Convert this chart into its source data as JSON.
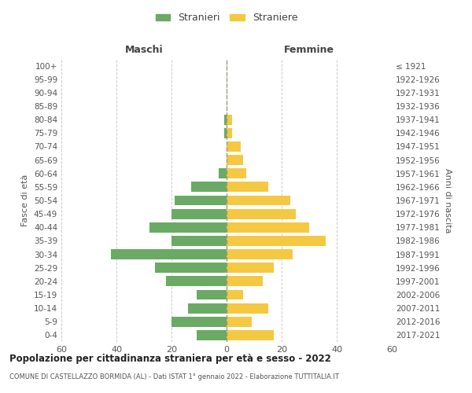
{
  "age_groups": [
    "0-4",
    "5-9",
    "10-14",
    "15-19",
    "20-24",
    "25-29",
    "30-34",
    "35-39",
    "40-44",
    "45-49",
    "50-54",
    "55-59",
    "60-64",
    "65-69",
    "70-74",
    "75-79",
    "80-84",
    "85-89",
    "90-94",
    "95-99",
    "100+"
  ],
  "birth_years": [
    "2017-2021",
    "2012-2016",
    "2007-2011",
    "2002-2006",
    "1997-2001",
    "1992-1996",
    "1987-1991",
    "1982-1986",
    "1977-1981",
    "1972-1976",
    "1967-1971",
    "1962-1966",
    "1957-1961",
    "1952-1956",
    "1947-1951",
    "1942-1946",
    "1937-1941",
    "1932-1936",
    "1927-1931",
    "1922-1926",
    "≤ 1921"
  ],
  "maschi": [
    11,
    20,
    14,
    11,
    22,
    26,
    42,
    20,
    28,
    20,
    19,
    13,
    3,
    0,
    0,
    1,
    1,
    0,
    0,
    0,
    0
  ],
  "femmine": [
    17,
    9,
    15,
    6,
    13,
    17,
    24,
    36,
    30,
    25,
    23,
    15,
    7,
    6,
    5,
    2,
    2,
    0,
    0,
    0,
    0
  ],
  "maschi_color": "#6aaa64",
  "femmine_color": "#f5c842",
  "title": "Popolazione per cittadinanza straniera per età e sesso - 2022",
  "subtitle": "COMUNE DI CASTELLAZZO BORMIDA (AL) - Dati ISTAT 1° gennaio 2022 - Elaborazione TUTTITALIA.IT",
  "xlabel_left": "Maschi",
  "xlabel_right": "Femmine",
  "ylabel_left": "Fasce di età",
  "ylabel_right": "Anni di nascita",
  "legend_maschi": "Stranieri",
  "legend_femmine": "Straniere",
  "xlim": 60,
  "background_color": "#ffffff",
  "grid_color": "#cccccc"
}
